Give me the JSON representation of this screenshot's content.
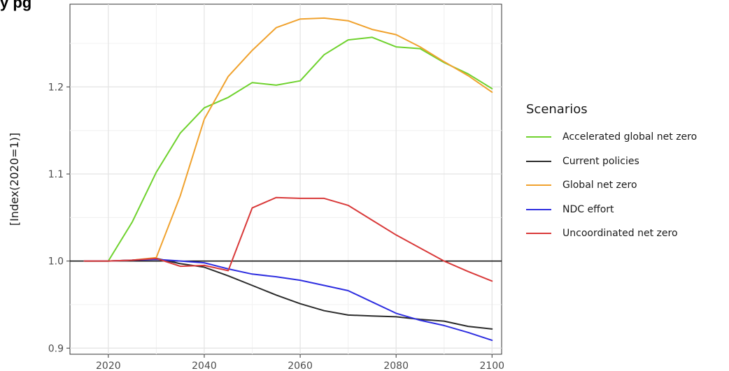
{
  "chart_data": {
    "type": "line",
    "title": "y                                                    pg",
    "ylabel": "[Index(2020=1)]",
    "xlabel": "",
    "xlim": [
      2012,
      2102
    ],
    "ylim": [
      0.893,
      1.295
    ],
    "x_ticks": [
      2020,
      2040,
      2060,
      2080,
      2100
    ],
    "y_ticks": [
      0.9,
      1.0,
      1.1,
      1.2
    ],
    "y_tick_labels": [
      "0.9",
      "1.0",
      "1.1",
      "1.2"
    ],
    "reference_line": 1.0,
    "grid": true,
    "legend_title": "Scenarios",
    "legend_placement": "right",
    "series": [
      {
        "name": "Accelerated global net zero",
        "color": "#6fd22e",
        "x": [
          2015,
          2020,
          2025,
          2030,
          2035,
          2040,
          2045,
          2050,
          2055,
          2060,
          2065,
          2070,
          2075,
          2080,
          2085,
          2090,
          2095,
          2100
        ],
        "y": [
          1.0,
          1.0,
          1.045,
          1.102,
          1.147,
          1.176,
          1.188,
          1.205,
          1.202,
          1.207,
          1.237,
          1.254,
          1.257,
          1.246,
          1.244,
          1.228,
          1.215,
          1.198
        ]
      },
      {
        "name": "Current policies",
        "color": "#2b2b2b",
        "x": [
          2015,
          2020,
          2025,
          2030,
          2035,
          2040,
          2045,
          2050,
          2055,
          2060,
          2065,
          2070,
          2075,
          2080,
          2085,
          2090,
          2095,
          2100
        ],
        "y": [
          1.0,
          1.0,
          1.001,
          1.003,
          0.997,
          0.993,
          0.983,
          0.972,
          0.961,
          0.951,
          0.943,
          0.938,
          0.937,
          0.936,
          0.933,
          0.931,
          0.925,
          0.922
        ]
      },
      {
        "name": "Global net zero",
        "color": "#f0a22e",
        "x": [
          2015,
          2020,
          2025,
          2030,
          2035,
          2040,
          2045,
          2050,
          2055,
          2060,
          2065,
          2070,
          2075,
          2080,
          2085,
          2090,
          2095,
          2100
        ],
        "y": [
          1.0,
          1.0,
          1.001,
          1.004,
          1.075,
          1.163,
          1.212,
          1.242,
          1.268,
          1.278,
          1.279,
          1.276,
          1.266,
          1.26,
          1.246,
          1.229,
          1.213,
          1.194
        ]
      },
      {
        "name": "NDC effort",
        "color": "#2e2ee0",
        "x": [
          2015,
          2020,
          2025,
          2030,
          2035,
          2040,
          2045,
          2050,
          2055,
          2060,
          2065,
          2070,
          2075,
          2080,
          2085,
          2090,
          2095,
          2100
        ],
        "y": [
          1.0,
          1.0,
          1.001,
          1.002,
          1.0,
          0.998,
          0.991,
          0.985,
          0.982,
          0.978,
          0.972,
          0.966,
          0.953,
          0.94,
          0.932,
          0.926,
          0.918,
          0.909
        ]
      },
      {
        "name": "Uncoordinated net zero",
        "color": "#d93a3a",
        "x": [
          2015,
          2020,
          2025,
          2030,
          2035,
          2040,
          2045,
          2050,
          2055,
          2060,
          2065,
          2070,
          2075,
          2080,
          2085,
          2090,
          2095,
          2100
        ],
        "y": [
          1.0,
          1.0,
          1.001,
          1.003,
          0.994,
          0.995,
          0.989,
          1.061,
          1.073,
          1.072,
          1.072,
          1.064,
          1.047,
          1.03,
          1.015,
          1.0,
          0.988,
          0.977
        ]
      }
    ]
  }
}
